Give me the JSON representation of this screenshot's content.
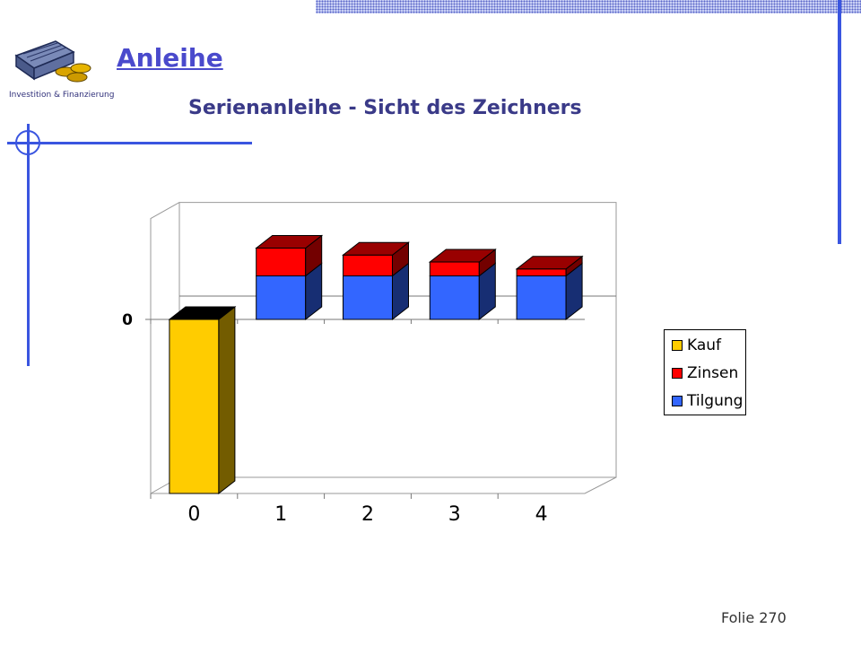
{
  "header": {
    "logo_caption": "Investition & Finanzierung",
    "title": "Anleihe",
    "subtitle": "Serienanleihe - Sicht des Zeichners"
  },
  "chart_data": {
    "type": "bar",
    "stacked": true,
    "three_d": true,
    "categories": [
      "0",
      "1",
      "2",
      "3",
      "4"
    ],
    "series": [
      {
        "name": "Kauf",
        "color": "#ffcc00",
        "values": [
          -100,
          0,
          0,
          0,
          0
        ]
      },
      {
        "name": "Tilgung",
        "color": "#3366ff",
        "values": [
          0,
          25,
          25,
          25,
          25
        ]
      },
      {
        "name": "Zinsen",
        "color": "#ff0000",
        "values": [
          0,
          16,
          12,
          8,
          4
        ]
      }
    ],
    "y_tick_labels": [
      "0"
    ],
    "ylim": [
      -100,
      60
    ],
    "grid": true,
    "legend_position": "right",
    "legend_order": [
      "Kauf",
      "Zinsen",
      "Tilgung"
    ]
  },
  "footer": {
    "slide_number": "Folie 270"
  }
}
